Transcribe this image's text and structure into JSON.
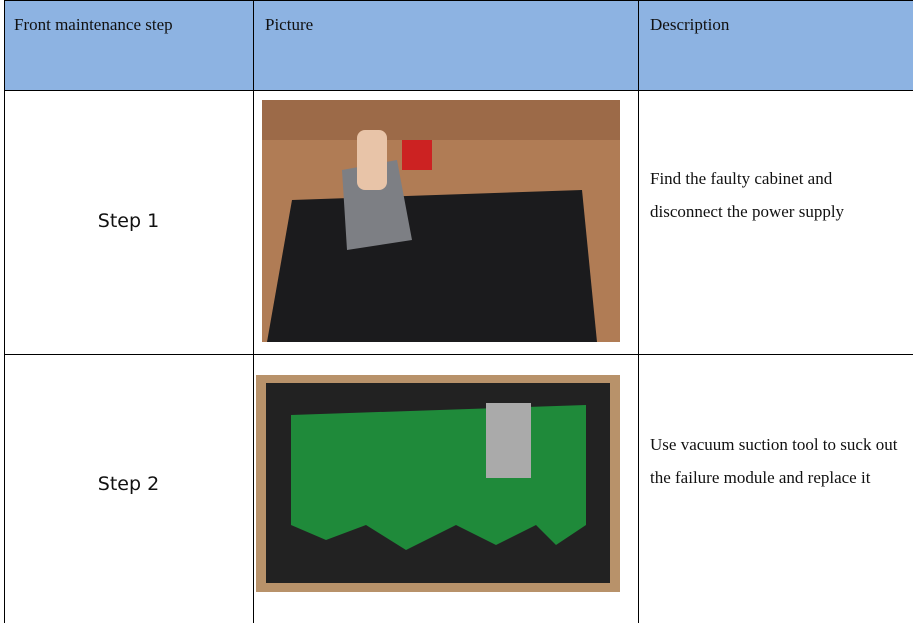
{
  "table": {
    "header": [
      "Front maintenance step",
      "Picture",
      "Description"
    ],
    "rows": [
      [
        "Step 1",
        "Find the faulty cabinet and disconnect the power supply"
      ],
      [
        "Step 2",
        "Use vacuum suction tool to suck out the failure module and replace it"
      ]
    ]
  }
}
